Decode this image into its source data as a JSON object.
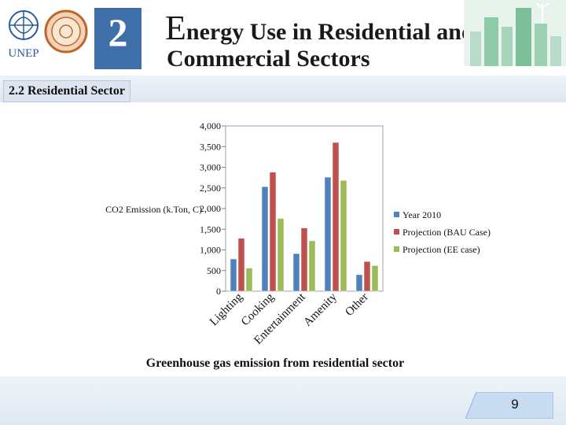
{
  "header": {
    "chapter_number": "2",
    "title_first_letter": "E",
    "title_line1_rest": "nergy Use in Residential and",
    "title_line2": "Commercial Sectors",
    "logo_text": "UNEP"
  },
  "section": {
    "label": "2.2 Residential Sector"
  },
  "chart_data": {
    "type": "bar",
    "categories": [
      "Lighting",
      "Cooking",
      "Entertainment",
      "Amenity",
      "Other"
    ],
    "series": [
      {
        "name": "Year 2010",
        "color": "#4f81bd",
        "values": [
          780,
          2530,
          910,
          2760,
          400
        ]
      },
      {
        "name": "Projection (BAU Case)",
        "color": "#c0504d",
        "values": [
          1280,
          2880,
          1530,
          3600,
          720
        ]
      },
      {
        "name": "Projection (EE case)",
        "color": "#9bbb59",
        "values": [
          560,
          1760,
          1220,
          2680,
          620
        ]
      }
    ],
    "ylabel": "CO2 Emission (k.Ton, C)",
    "ylim": [
      0,
      4000
    ],
    "yticks": [
      0,
      500,
      1000,
      1500,
      2000,
      2500,
      3000,
      3500,
      4000
    ],
    "ytick_labels": [
      "0",
      "500",
      "1,000",
      "1,500",
      "2,000",
      "2,500",
      "3,000",
      "3,500",
      "4,000"
    ],
    "grid": false,
    "legend_position": "right"
  },
  "caption": "Greenhouse gas emission from residential sector",
  "footer": {
    "page_number": "9"
  }
}
